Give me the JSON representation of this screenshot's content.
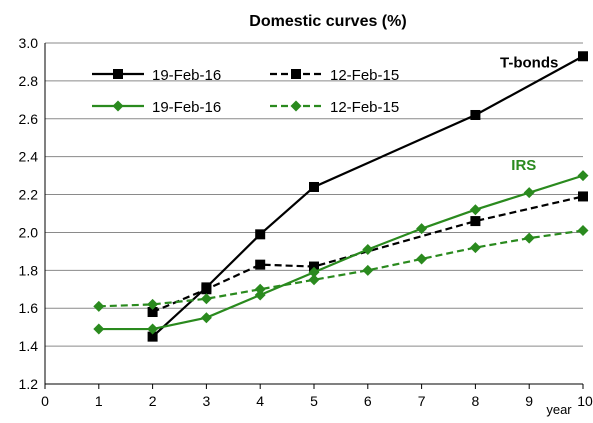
{
  "chart_data": {
    "type": "line",
    "title": "Domestic curves (%)",
    "xlabel": "year",
    "ylabel": "",
    "xlim": [
      0,
      10
    ],
    "ylim": [
      1.2,
      3.0
    ],
    "x_ticks": [
      "0",
      "1",
      "2",
      "3",
      "4",
      "5",
      "6",
      "7",
      "8",
      "9",
      "10"
    ],
    "y_ticks": [
      "1.2",
      "1.4",
      "1.6",
      "1.8",
      "2.0",
      "2.2",
      "2.4",
      "2.6",
      "2.8",
      "3.0"
    ],
    "grid": "horizontal",
    "legend_position": "top-left",
    "series": [
      {
        "name": "19-Feb-16",
        "group": "T-bonds",
        "color": "#000000",
        "dash": "solid",
        "marker": "square",
        "x": [
          2,
          3,
          4,
          5,
          8,
          10
        ],
        "y": [
          1.45,
          1.71,
          1.99,
          2.24,
          2.62,
          2.93
        ]
      },
      {
        "name": "12-Feb-15",
        "group": "T-bonds",
        "color": "#000000",
        "dash": "dashed",
        "marker": "square",
        "x": [
          2,
          3,
          4,
          5,
          8,
          10
        ],
        "y": [
          1.58,
          1.7,
          1.83,
          1.82,
          2.06,
          2.19
        ]
      },
      {
        "name": "19-Feb-16",
        "group": "IRS",
        "color": "#2a8a1e",
        "dash": "solid",
        "marker": "diamond",
        "x": [
          1,
          2,
          3,
          4,
          5,
          6,
          7,
          8,
          9,
          10
        ],
        "y": [
          1.49,
          1.49,
          1.55,
          1.67,
          1.79,
          1.91,
          2.02,
          2.12,
          2.21,
          2.3
        ]
      },
      {
        "name": "12-Feb-15",
        "group": "IRS",
        "color": "#2a8a1e",
        "dash": "dashed",
        "marker": "diamond",
        "x": [
          1,
          2,
          3,
          4,
          5,
          6,
          7,
          8,
          9,
          10
        ],
        "y": [
          1.61,
          1.62,
          1.65,
          1.7,
          1.75,
          1.8,
          1.86,
          1.92,
          1.97,
          2.01
        ]
      }
    ],
    "annotations": [
      {
        "text": "T-bonds",
        "color": "#000000",
        "x": 9.0,
        "y": 2.87
      },
      {
        "text": "IRS",
        "color": "#2a8a1e",
        "x": 8.9,
        "y": 2.33
      }
    ]
  }
}
